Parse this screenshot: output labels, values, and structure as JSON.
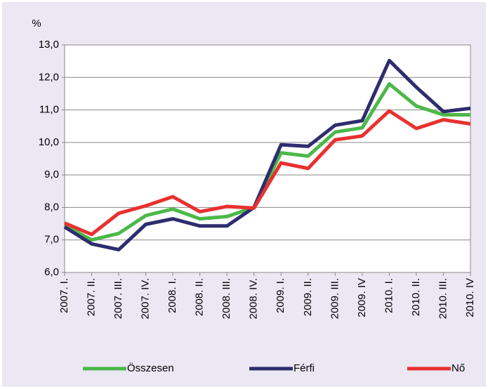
{
  "chart_data": {
    "type": "line",
    "y_label": "%",
    "categories": [
      "2007. I.",
      "2007. II.",
      "2007. III.",
      "2007. IV.",
      "2008. I.",
      "2008. II.",
      "2008. III.",
      "2008. IV.",
      "2009. I.",
      "2009. II.",
      "2009. III.",
      "2009. IV",
      "2010. I.",
      "2010. II.",
      "2010. III.",
      "2010. IV"
    ],
    "series": [
      {
        "name": "Összesen",
        "color": "#4cb848",
        "values": [
          7.45,
          7.0,
          7.2,
          7.75,
          7.95,
          7.65,
          7.72,
          8.0,
          9.68,
          9.58,
          10.32,
          10.45,
          11.8,
          11.12,
          10.85,
          10.85
        ]
      },
      {
        "name": "Férfi",
        "color": "#2e2d6e",
        "values": [
          7.4,
          6.88,
          6.7,
          7.48,
          7.65,
          7.43,
          7.43,
          8.0,
          9.93,
          9.88,
          10.53,
          10.67,
          12.52,
          11.7,
          10.95,
          11.05
        ]
      },
      {
        "name": "Nő",
        "color": "#e8312f",
        "values": [
          7.52,
          7.17,
          7.82,
          8.05,
          8.33,
          7.87,
          8.03,
          7.98,
          9.37,
          9.2,
          10.08,
          10.2,
          10.97,
          10.43,
          10.7,
          10.57
        ]
      }
    ],
    "ylim": [
      6,
      13
    ],
    "yticks": [
      {
        "value": 6,
        "label": "6,0"
      },
      {
        "value": 7,
        "label": "7,0"
      },
      {
        "value": 8,
        "label": "8,0"
      },
      {
        "value": 9,
        "label": "9,0"
      },
      {
        "value": 10,
        "label": "10,0"
      },
      {
        "value": 11,
        "label": "11,0"
      },
      {
        "value": 12,
        "label": "12,0"
      },
      {
        "value": 13,
        "label": "13,0"
      }
    ],
    "grid": true,
    "legend": "bottom"
  }
}
